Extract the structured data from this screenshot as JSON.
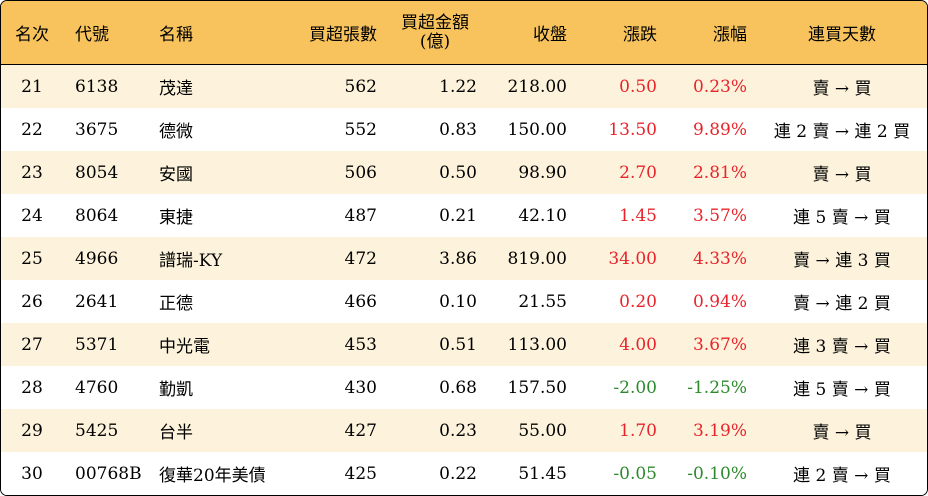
{
  "columns": {
    "rank": "名次",
    "code": "代號",
    "name": "名稱",
    "net_buy_lots": "買超張數",
    "net_buy_amount_line1": "買超金額",
    "net_buy_amount_line2": "(億)",
    "close": "收盤",
    "change": "漲跌",
    "change_pct": "漲幅",
    "streak": "連買天數"
  },
  "colors": {
    "header_bg": "#f8c35d",
    "stripe_bg": "#fdf3dc",
    "up": "#e8242a",
    "down": "#2c8a2c"
  },
  "rows": [
    {
      "rank": "21",
      "code": "6138",
      "name": "茂達",
      "lots": "562",
      "amount": "1.22",
      "close": "218.00",
      "change": "0.50",
      "pct": "0.23%",
      "dir": "up",
      "streak": "賣 → 買"
    },
    {
      "rank": "22",
      "code": "3675",
      "name": "德微",
      "lots": "552",
      "amount": "0.83",
      "close": "150.00",
      "change": "13.50",
      "pct": "9.89%",
      "dir": "up",
      "streak": "連 2 賣 → 連 2 買"
    },
    {
      "rank": "23",
      "code": "8054",
      "name": "安國",
      "lots": "506",
      "amount": "0.50",
      "close": "98.90",
      "change": "2.70",
      "pct": "2.81%",
      "dir": "up",
      "streak": "賣 → 買"
    },
    {
      "rank": "24",
      "code": "8064",
      "name": "東捷",
      "lots": "487",
      "amount": "0.21",
      "close": "42.10",
      "change": "1.45",
      "pct": "3.57%",
      "dir": "up",
      "streak": "連 5 賣 → 買"
    },
    {
      "rank": "25",
      "code": "4966",
      "name": "譜瑞-KY",
      "lots": "472",
      "amount": "3.86",
      "close": "819.00",
      "change": "34.00",
      "pct": "4.33%",
      "dir": "up",
      "streak": "賣 → 連 3 買"
    },
    {
      "rank": "26",
      "code": "2641",
      "name": "正德",
      "lots": "466",
      "amount": "0.10",
      "close": "21.55",
      "change": "0.20",
      "pct": "0.94%",
      "dir": "up",
      "streak": "賣 → 連 2 買"
    },
    {
      "rank": "27",
      "code": "5371",
      "name": "中光電",
      "lots": "453",
      "amount": "0.51",
      "close": "113.00",
      "change": "4.00",
      "pct": "3.67%",
      "dir": "up",
      "streak": "連 3 賣 → 買"
    },
    {
      "rank": "28",
      "code": "4760",
      "name": "勤凱",
      "lots": "430",
      "amount": "0.68",
      "close": "157.50",
      "change": "-2.00",
      "pct": "-1.25%",
      "dir": "down",
      "streak": "連 5 賣 → 買"
    },
    {
      "rank": "29",
      "code": "5425",
      "name": "台半",
      "lots": "427",
      "amount": "0.23",
      "close": "55.00",
      "change": "1.70",
      "pct": "3.19%",
      "dir": "up",
      "streak": "賣 → 買"
    },
    {
      "rank": "30",
      "code": "00768B",
      "name": "復華20年美債",
      "lots": "425",
      "amount": "0.22",
      "close": "51.45",
      "change": "-0.05",
      "pct": "-0.10%",
      "dir": "down",
      "streak": "連 2 賣 → 買"
    }
  ]
}
